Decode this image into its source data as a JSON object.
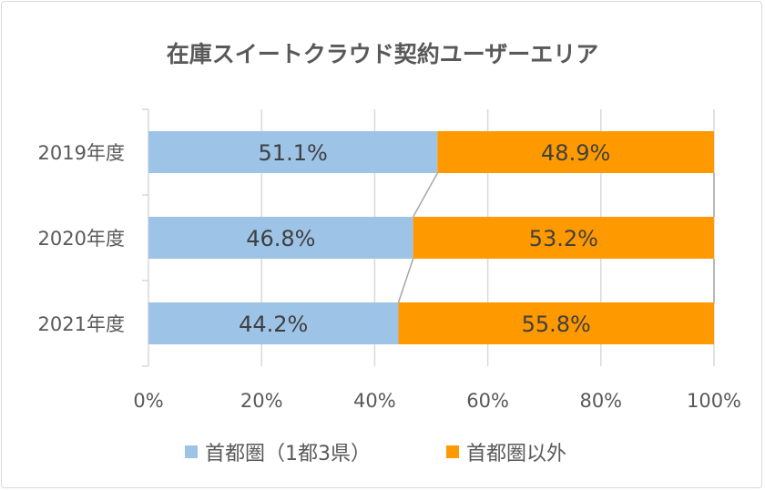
{
  "chart_data": {
    "type": "bar",
    "orientation": "horizontal",
    "stacked": "percent",
    "title": "在庫スイートクラウド契約ユーザーエリア",
    "categories": [
      "2019年度",
      "2020年度",
      "2021年度"
    ],
    "series": [
      {
        "name": "首都圏（1都3県）",
        "values": [
          51.1,
          46.8,
          44.2
        ],
        "labels": [
          "51.1%",
          "46.8%",
          "44.2%"
        ],
        "color": "#9dc3e6"
      },
      {
        "name": "首都圏以外",
        "values": [
          48.9,
          53.2,
          55.8
        ],
        "labels": [
          "48.9%",
          "53.2%",
          "55.8%"
        ],
        "color": "#ff9900"
      }
    ],
    "xlim": [
      0,
      100
    ],
    "xticks": [
      "0%",
      "20%",
      "40%",
      "60%",
      "80%",
      "100%"
    ],
    "grid": true,
    "series_lines": true,
    "legend": "bottom"
  }
}
